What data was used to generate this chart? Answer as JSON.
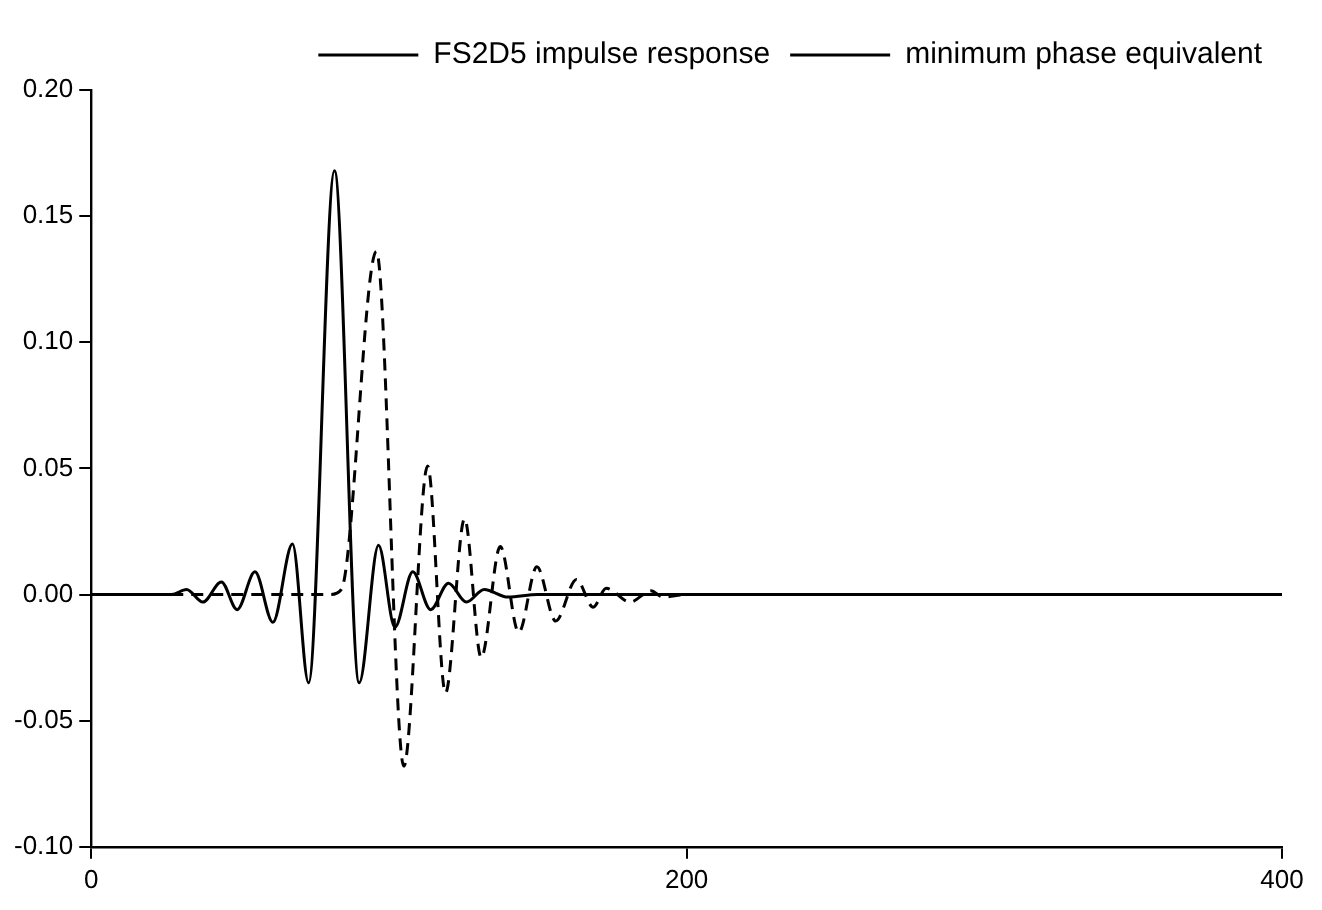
{
  "chart_data": {
    "type": "line",
    "xlim": [
      0,
      400
    ],
    "ylim": [
      -0.1,
      0.2
    ],
    "xticks": [
      0,
      200,
      400
    ],
    "yticks": [
      {
        "value": -0.1,
        "label": "-0.10"
      },
      {
        "value": -0.05,
        "label": "-0.05"
      },
      {
        "value": 0,
        "label": "0.00"
      },
      {
        "value": 0.05,
        "label": "0.05"
      },
      {
        "value": 0.1,
        "label": "0.10"
      },
      {
        "value": 0.15,
        "label": "0.15"
      },
      {
        "value": 0.2,
        "label": "0.20"
      }
    ],
    "grid": false,
    "legend": "top right",
    "marker": "none",
    "series": [
      {
        "name": "FS2D5 impulse response",
        "color": "#000000",
        "line_style": "solid",
        "x": [
          0,
          15,
          27,
          32,
          37.5,
          43.7,
          49,
          55,
          61,
          67.6,
          73,
          81.7,
          90,
          96.5,
          102,
          108,
          114,
          120,
          126,
          132,
          140,
          150,
          400
        ],
        "values": [
          0,
          0,
          0,
          0.002,
          -0.003,
          0.005,
          -0.006,
          0.009,
          -0.011,
          0.02,
          -0.035,
          0.168,
          -0.035,
          0.0195,
          -0.013,
          0.009,
          -0.006,
          0.0045,
          -0.003,
          0.002,
          -0.001,
          0,
          0
        ]
      },
      {
        "name": "minimum phase equivalent",
        "color": "#000000",
        "line_style": "dashed",
        "x": [
          0,
          80,
          84,
          95.8,
          105,
          113,
          119,
          125.4,
          131,
          137.4,
          143.6,
          149.7,
          156,
          163,
          168.6,
          173,
          181,
          188,
          192,
          200,
          400
        ],
        "values": [
          0,
          0,
          0.002,
          0.136,
          -0.068,
          0.051,
          -0.039,
          0.03,
          -0.025,
          0.019,
          -0.015,
          0.011,
          -0.0105,
          0.006,
          -0.005,
          0.0025,
          -0.003,
          0.0015,
          -0.001,
          0,
          0
        ]
      }
    ]
  }
}
